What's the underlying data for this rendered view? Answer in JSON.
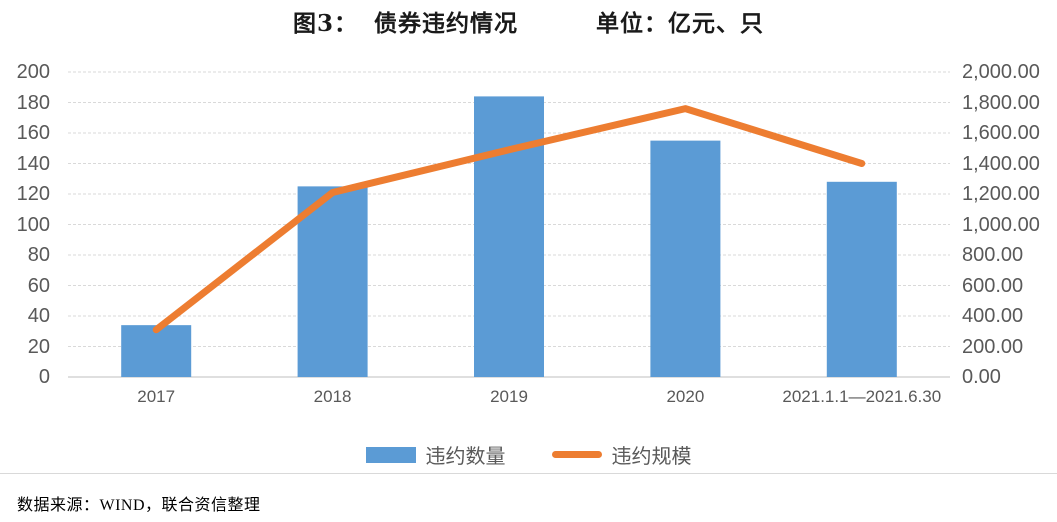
{
  "title": {
    "figure_label": "图3：",
    "text": "债券违约情况",
    "unit": "单位：亿元、只"
  },
  "legend": [
    {
      "label": "违约数量",
      "type": "bar",
      "color": "#5B9BD5"
    },
    {
      "label": "违约规模",
      "type": "line",
      "color": "#ED7D31"
    }
  ],
  "footer": {
    "source": "数据来源：WIND，联合资信整理"
  },
  "colors": {
    "bar_blue": "#5B9BD5",
    "line_orange": "#ED7D31",
    "gridline": "#d9d9d9",
    "axis_line": "#bfbfbf",
    "tick_text": "#595959"
  },
  "chart_data": {
    "type": "bar",
    "subtype": "bar+line dual-axis",
    "title": "图3： 债券违约情况",
    "unit_note": "单位：亿元、只",
    "categories": [
      "2017",
      "2018",
      "2019",
      "2020",
      "2021.1.1—2021.6.30"
    ],
    "series": [
      {
        "name": "违约数量",
        "type": "bar",
        "axis": "left",
        "color": "#5B9BD5",
        "values": [
          34,
          125,
          184,
          155,
          128
        ]
      },
      {
        "name": "违约规模",
        "type": "line",
        "axis": "right",
        "color": "#ED7D31",
        "values": [
          310,
          1210,
          1490,
          1760,
          1400
        ]
      }
    ],
    "left_axis": {
      "min": 0,
      "max": 200,
      "step": 20,
      "labels": [
        "0",
        "20",
        "40",
        "60",
        "80",
        "100",
        "120",
        "140",
        "160",
        "180",
        "200"
      ]
    },
    "right_axis": {
      "min": 0,
      "max": 2000,
      "step": 200,
      "labels": [
        "0.00",
        "200.00",
        "400.00",
        "600.00",
        "800.00",
        "1,000.00",
        "1,200.00",
        "1,400.00",
        "1,600.00",
        "1,800.00",
        "2,000.00"
      ]
    },
    "grid": true,
    "legend_position": "bottom"
  }
}
